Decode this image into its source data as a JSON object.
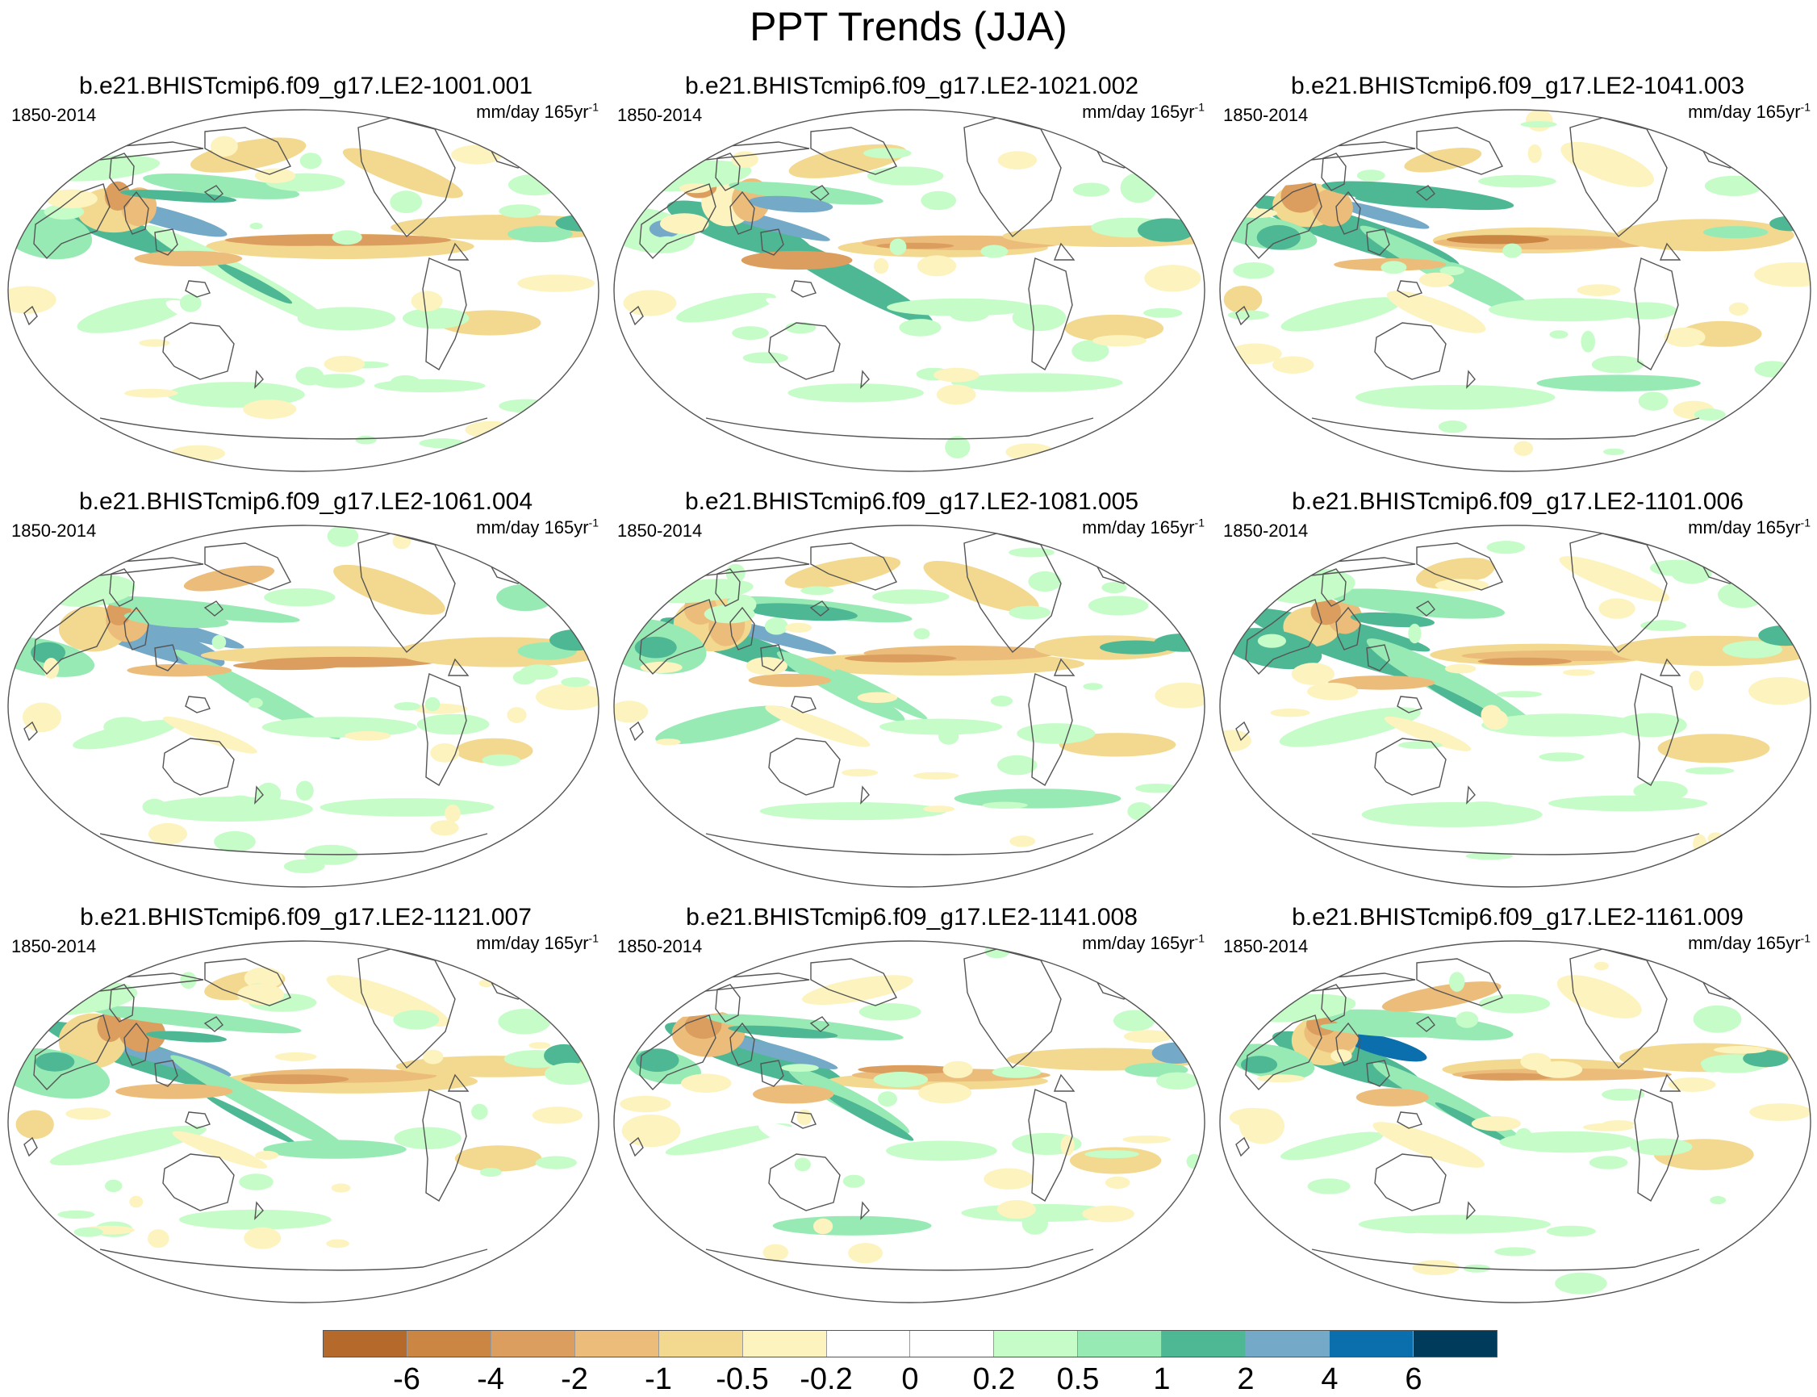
{
  "figure": {
    "title": "PPT Trends (JJA)",
    "period": "1850-2014",
    "units_text": "mm/day 165yr",
    "units_superscript": "-1"
  },
  "panels": [
    {
      "title": "b.e21.BHISTcmip6.f09_g17.LE2-1001.001"
    },
    {
      "title": "b.e21.BHISTcmip6.f09_g17.LE2-1021.002"
    },
    {
      "title": "b.e21.BHISTcmip6.f09_g17.LE2-1041.003"
    },
    {
      "title": "b.e21.BHISTcmip6.f09_g17.LE2-1061.004"
    },
    {
      "title": "b.e21.BHISTcmip6.f09_g17.LE2-1081.005"
    },
    {
      "title": "b.e21.BHISTcmip6.f09_g17.LE2-1101.006"
    },
    {
      "title": "b.e21.BHISTcmip6.f09_g17.LE2-1121.007"
    },
    {
      "title": "b.e21.BHISTcmip6.f09_g17.LE2-1141.008"
    },
    {
      "title": "b.e21.BHISTcmip6.f09_g17.LE2-1161.009"
    }
  ],
  "colorbar": {
    "colors": [
      "#b5692a",
      "#cc8643",
      "#dc9e5e",
      "#ecbd7a",
      "#f2d98f",
      "#fcf3bf",
      "#ffffff",
      "#ffffff",
      "#c5fcc8",
      "#98eab5",
      "#4eb894",
      "#74a9c8",
      "#0a6fac",
      "#003b5c"
    ],
    "labels": [
      "-6",
      "-4",
      "-2",
      "-1",
      "-0.5",
      "-0.2",
      "0",
      "0.2",
      "0.5",
      "1",
      "2",
      "4",
      "6"
    ]
  }
}
